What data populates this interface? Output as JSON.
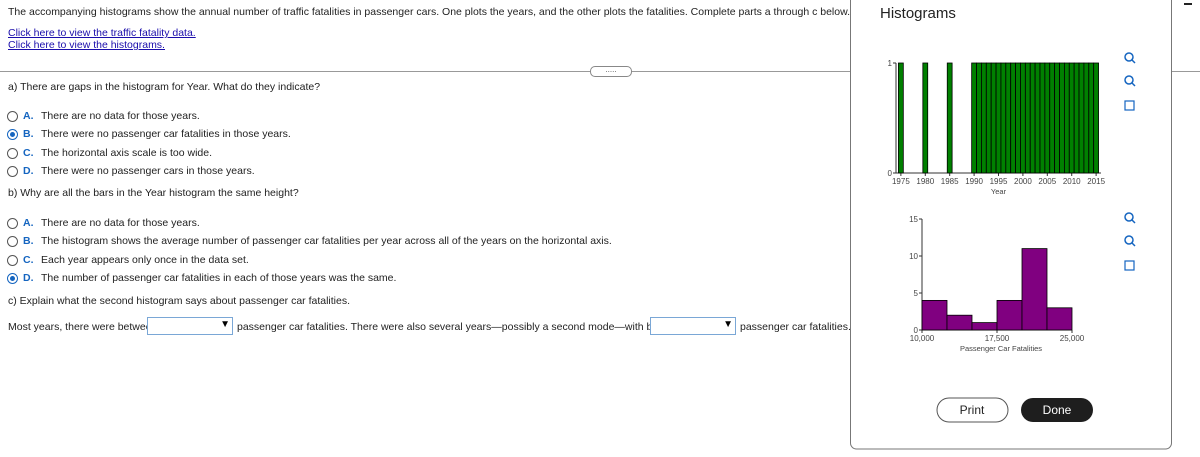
{
  "intro": "The accompanying histograms show the annual number of traffic fatalities in passenger cars. One plots the years, and the other plots the fatalities. Complete parts a through c below.",
  "links": [
    "Click here to view the traffic fatality data.",
    "Click here to view the histograms."
  ],
  "part_a": {
    "question": "a) There are gaps in the histogram for Year. What do they indicate?",
    "options": [
      {
        "letter": "A.",
        "text": "There are no data for those years.",
        "selected": false
      },
      {
        "letter": "B.",
        "text": "There were no passenger car fatalities in those years.",
        "selected": true
      },
      {
        "letter": "C.",
        "text": "The horizontal axis scale is too wide.",
        "selected": false
      },
      {
        "letter": "D.",
        "text": "There were no passenger cars in those years.",
        "selected": false
      }
    ]
  },
  "part_b": {
    "question": "b) Why are all the bars in the Year histogram the same height?",
    "options": [
      {
        "letter": "A.",
        "text": "There are no data for those years.",
        "selected": false
      },
      {
        "letter": "B.",
        "text": "The histogram shows the average number of passenger car fatalities per year across all of the years on the horizontal axis.",
        "selected": false
      },
      {
        "letter": "C.",
        "text": "Each year appears only once in the data set.",
        "selected": false
      },
      {
        "letter": "D.",
        "text": "The number of passenger car fatalities in each of those years was the same.",
        "selected": true
      }
    ]
  },
  "part_c": {
    "question": "c) Explain what the second histogram says about passenger car fatalities.",
    "sentence": [
      "Most years, there were between",
      "passenger car fatalities. There were also several years—possibly a second mode—with between",
      "passenger car fatalities."
    ]
  },
  "popup": {
    "title": "Histograms",
    "buttons": [
      "Print",
      "Done"
    ],
    "histograms": [
      {
        "type": "histogram",
        "xlabel": "Year",
        "color": "#008000",
        "bins": [
          1974.5,
          1975.5,
          1976.5,
          1977.5,
          1978.5,
          1979.5,
          1980.5,
          1981.5,
          1982.5,
          1983.5,
          1984.5,
          1985.5,
          1986.5,
          1987.5,
          1988.5,
          1989.5,
          1990.5,
          1991.5,
          1992.5,
          1993.5,
          1994.5,
          1995.5,
          1996.5,
          1997.5,
          1998.5,
          1999.5,
          2000.5,
          2001.5,
          2002.5,
          2003.5,
          2004.5,
          2005.5,
          2006.5,
          2007.5,
          2008.5,
          2009.5,
          2010.5,
          2011.5,
          2012.5,
          2013.5,
          2014.5,
          2015.5
        ],
        "values": [
          1,
          0,
          0,
          0,
          0,
          1,
          0,
          0,
          0,
          0,
          1,
          0,
          0,
          0,
          0,
          1,
          1,
          1,
          1,
          1,
          1,
          1,
          1,
          1,
          1,
          1,
          1,
          1,
          1,
          1,
          1,
          1,
          1,
          1,
          1,
          1,
          1,
          1,
          1,
          1,
          1
        ],
        "xlim": [
          1974,
          2016
        ],
        "xticks": [
          1975,
          1980,
          1985,
          1990,
          1995,
          2000,
          2005,
          2010,
          2015
        ],
        "ylim": [
          0,
          1
        ],
        "yticks": [
          0,
          1
        ]
      },
      {
        "type": "histogram",
        "xlabel": "Passenger Car Fatalities",
        "color": "#800080",
        "bins": [
          10000,
          12500,
          15000,
          17500,
          20000,
          22500,
          25000
        ],
        "values": [
          4,
          2,
          1,
          4,
          11,
          3
        ],
        "xlim": [
          10000,
          25000
        ],
        "xticks": [
          {
            "value": 10000,
            "label": "10,000"
          },
          {
            "value": 17500,
            "label": "17,500"
          },
          {
            "value": 25000,
            "label": "25,000"
          }
        ],
        "ylim": [
          0,
          15
        ],
        "yticks": [
          0,
          5,
          10,
          15
        ]
      }
    ]
  }
}
